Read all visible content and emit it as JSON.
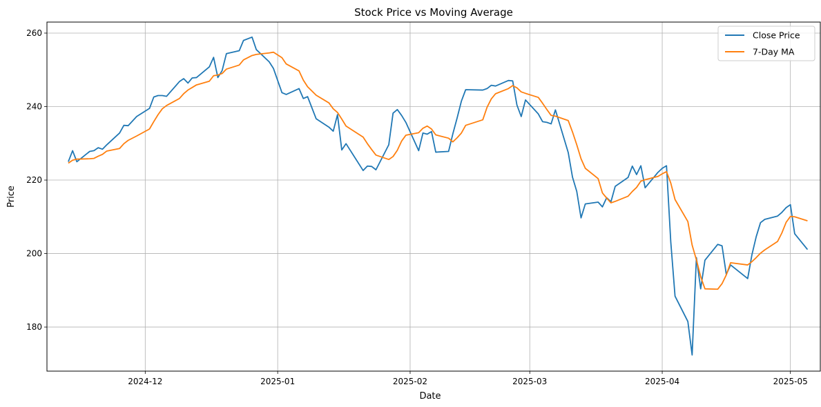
{
  "chart_data": {
    "type": "line",
    "title": "Stock Price vs Moving Average",
    "xlabel": "Date",
    "ylabel": "Price",
    "xlim": [
      "2024-11-08",
      "2025-05-08"
    ],
    "ylim": [
      168,
      263
    ],
    "x_ticks": [
      "2024-12",
      "2025-01",
      "2025-02",
      "2025-03",
      "2025-04",
      "2025-05"
    ],
    "y_ticks": [
      180,
      200,
      220,
      240,
      260
    ],
    "grid": true,
    "legend_position": "top-right",
    "series": [
      {
        "name": "Close Price",
        "color": "#1f77b4",
        "points": [
          [
            "2024-11-13",
            225.0
          ],
          [
            "2024-11-14",
            228.0
          ],
          [
            "2024-11-15",
            225.0
          ],
          [
            "2024-11-18",
            227.8
          ],
          [
            "2024-11-19",
            228.0
          ],
          [
            "2024-11-20",
            228.8
          ],
          [
            "2024-11-21",
            228.4
          ],
          [
            "2024-11-22",
            229.6
          ],
          [
            "2024-11-25",
            232.8
          ],
          [
            "2024-11-26",
            234.9
          ],
          [
            "2024-11-27",
            234.8
          ],
          [
            "2024-11-29",
            237.3
          ],
          [
            "2024-12-02",
            239.5
          ],
          [
            "2024-12-03",
            242.6
          ],
          [
            "2024-12-04",
            243.0
          ],
          [
            "2024-12-05",
            243.0
          ],
          [
            "2024-12-06",
            242.8
          ],
          [
            "2024-12-09",
            246.8
          ],
          [
            "2024-12-10",
            247.6
          ],
          [
            "2024-12-11",
            246.4
          ],
          [
            "2024-12-12",
            247.8
          ],
          [
            "2024-12-13",
            247.9
          ],
          [
            "2024-12-16",
            250.8
          ],
          [
            "2024-12-17",
            253.4
          ],
          [
            "2024-12-18",
            247.9
          ],
          [
            "2024-12-19",
            249.8
          ],
          [
            "2024-12-20",
            254.4
          ],
          [
            "2024-12-23",
            255.2
          ],
          [
            "2024-12-24",
            258.0
          ],
          [
            "2024-12-26",
            258.9
          ],
          [
            "2024-12-27",
            255.5
          ],
          [
            "2024-12-30",
            252.2
          ],
          [
            "2024-12-31",
            250.4
          ],
          [
            "2025-01-02",
            243.8
          ],
          [
            "2025-01-03",
            243.3
          ],
          [
            "2025-01-06",
            244.9
          ],
          [
            "2025-01-07",
            242.2
          ],
          [
            "2025-01-08",
            242.7
          ],
          [
            "2025-01-10",
            236.7
          ],
          [
            "2025-01-13",
            234.4
          ],
          [
            "2025-01-14",
            233.3
          ],
          [
            "2025-01-15",
            237.8
          ],
          [
            "2025-01-16",
            228.2
          ],
          [
            "2025-01-17",
            229.9
          ],
          [
            "2025-01-21",
            222.6
          ],
          [
            "2025-01-22",
            223.8
          ],
          [
            "2025-01-23",
            223.7
          ],
          [
            "2025-01-24",
            222.8
          ],
          [
            "2025-01-27",
            229.6
          ],
          [
            "2025-01-28",
            238.2
          ],
          [
            "2025-01-29",
            239.2
          ],
          [
            "2025-01-30",
            237.6
          ],
          [
            "2025-01-31",
            235.7
          ],
          [
            "2025-02-03",
            228.0
          ],
          [
            "2025-02-04",
            232.8
          ],
          [
            "2025-02-05",
            232.5
          ],
          [
            "2025-02-06",
            233.2
          ],
          [
            "2025-02-07",
            227.6
          ],
          [
            "2025-02-10",
            227.8
          ],
          [
            "2025-02-11",
            232.6
          ],
          [
            "2025-02-12",
            236.9
          ],
          [
            "2025-02-13",
            241.5
          ],
          [
            "2025-02-14",
            244.6
          ],
          [
            "2025-02-18",
            244.5
          ],
          [
            "2025-02-19",
            244.9
          ],
          [
            "2025-02-20",
            245.8
          ],
          [
            "2025-02-21",
            245.6
          ],
          [
            "2025-02-24",
            247.1
          ],
          [
            "2025-02-25",
            247.0
          ],
          [
            "2025-02-26",
            240.4
          ],
          [
            "2025-02-27",
            237.3
          ],
          [
            "2025-02-28",
            241.8
          ],
          [
            "2025-03-03",
            238.0
          ],
          [
            "2025-03-04",
            235.9
          ],
          [
            "2025-03-05",
            235.7
          ],
          [
            "2025-03-06",
            235.3
          ],
          [
            "2025-03-07",
            239.1
          ],
          [
            "2025-03-10",
            227.5
          ],
          [
            "2025-03-11",
            220.8
          ],
          [
            "2025-03-12",
            216.9
          ],
          [
            "2025-03-13",
            209.7
          ],
          [
            "2025-03-14",
            213.5
          ],
          [
            "2025-03-17",
            214.0
          ],
          [
            "2025-03-18",
            212.7
          ],
          [
            "2025-03-19",
            215.2
          ],
          [
            "2025-03-20",
            214.1
          ],
          [
            "2025-03-21",
            218.3
          ],
          [
            "2025-03-24",
            220.7
          ],
          [
            "2025-03-25",
            223.8
          ],
          [
            "2025-03-26",
            221.5
          ],
          [
            "2025-03-27",
            223.9
          ],
          [
            "2025-03-28",
            217.9
          ],
          [
            "2025-03-31",
            222.1
          ],
          [
            "2025-04-01",
            223.2
          ],
          [
            "2025-04-02",
            223.9
          ],
          [
            "2025-04-03",
            203.2
          ],
          [
            "2025-04-04",
            188.4
          ],
          [
            "2025-04-07",
            181.5
          ],
          [
            "2025-04-08",
            172.4
          ],
          [
            "2025-04-09",
            198.9
          ],
          [
            "2025-04-10",
            190.4
          ],
          [
            "2025-04-11",
            198.2
          ],
          [
            "2025-04-14",
            202.5
          ],
          [
            "2025-04-15",
            202.1
          ],
          [
            "2025-04-16",
            194.3
          ],
          [
            "2025-04-17",
            196.9
          ],
          [
            "2025-04-21",
            193.2
          ],
          [
            "2025-04-22",
            199.7
          ],
          [
            "2025-04-23",
            204.6
          ],
          [
            "2025-04-24",
            208.4
          ],
          [
            "2025-04-25",
            209.3
          ],
          [
            "2025-04-28",
            210.2
          ],
          [
            "2025-04-29",
            211.2
          ],
          [
            "2025-04-30",
            212.5
          ],
          [
            "2025-05-01",
            213.3
          ],
          [
            "2025-05-02",
            205.4
          ],
          [
            "2025-05-05",
            201.1
          ]
        ]
      },
      {
        "name": "7-Day MA",
        "color": "#ff7f0e",
        "points": [
          [
            "2024-11-13",
            224.6
          ],
          [
            "2024-11-14",
            225.4
          ],
          [
            "2024-11-15",
            225.7
          ],
          [
            "2024-11-18",
            225.8
          ],
          [
            "2024-11-19",
            225.9
          ],
          [
            "2024-11-20",
            226.5
          ],
          [
            "2024-11-21",
            227.0
          ],
          [
            "2024-11-22",
            227.9
          ],
          [
            "2024-11-25",
            228.6
          ],
          [
            "2024-11-26",
            229.9
          ],
          [
            "2024-11-27",
            230.8
          ],
          [
            "2024-11-29",
            232.0
          ],
          [
            "2024-12-02",
            233.9
          ],
          [
            "2024-12-03",
            235.9
          ],
          [
            "2024-12-04",
            237.8
          ],
          [
            "2024-12-05",
            239.4
          ],
          [
            "2024-12-06",
            240.3
          ],
          [
            "2024-12-09",
            242.2
          ],
          [
            "2024-12-10",
            243.5
          ],
          [
            "2024-12-11",
            244.5
          ],
          [
            "2024-12-12",
            245.2
          ],
          [
            "2024-12-13",
            245.9
          ],
          [
            "2024-12-16",
            246.9
          ],
          [
            "2024-12-17",
            248.4
          ],
          [
            "2024-12-18",
            248.6
          ],
          [
            "2024-12-19",
            249.0
          ],
          [
            "2024-12-20",
            250.2
          ],
          [
            "2024-12-23",
            251.3
          ],
          [
            "2024-12-24",
            252.7
          ],
          [
            "2024-12-26",
            253.9
          ],
          [
            "2024-12-27",
            254.2
          ],
          [
            "2024-12-30",
            254.6
          ],
          [
            "2024-12-31",
            254.8
          ],
          [
            "2025-01-02",
            253.3
          ],
          [
            "2025-01-03",
            251.6
          ],
          [
            "2025-01-06",
            249.7
          ],
          [
            "2025-01-07",
            247.2
          ],
          [
            "2025-01-08",
            245.4
          ],
          [
            "2025-01-10",
            243.1
          ],
          [
            "2025-01-13",
            241.0
          ],
          [
            "2025-01-14",
            239.4
          ],
          [
            "2025-01-15",
            238.4
          ],
          [
            "2025-01-16",
            236.6
          ],
          [
            "2025-01-17",
            234.7
          ],
          [
            "2025-01-21",
            231.7
          ],
          [
            "2025-01-22",
            229.9
          ],
          [
            "2025-01-23",
            228.3
          ],
          [
            "2025-01-24",
            226.8
          ],
          [
            "2025-01-27",
            225.6
          ],
          [
            "2025-01-28",
            226.4
          ],
          [
            "2025-01-29",
            228.1
          ],
          [
            "2025-01-30",
            230.6
          ],
          [
            "2025-01-31",
            232.2
          ],
          [
            "2025-02-03",
            232.9
          ],
          [
            "2025-02-04",
            234.1
          ],
          [
            "2025-02-05",
            234.7
          ],
          [
            "2025-02-06",
            233.9
          ],
          [
            "2025-02-07",
            232.3
          ],
          [
            "2025-02-10",
            231.4
          ],
          [
            "2025-02-11",
            230.4
          ],
          [
            "2025-02-12",
            231.5
          ],
          [
            "2025-02-13",
            232.8
          ],
          [
            "2025-02-14",
            234.9
          ],
          [
            "2025-02-18",
            236.4
          ],
          [
            "2025-02-19",
            239.8
          ],
          [
            "2025-02-20",
            242.1
          ],
          [
            "2025-02-21",
            243.5
          ],
          [
            "2025-02-24",
            244.9
          ],
          [
            "2025-02-25",
            245.7
          ],
          [
            "2025-02-26",
            245.1
          ],
          [
            "2025-02-27",
            244.0
          ],
          [
            "2025-02-28",
            243.6
          ],
          [
            "2025-03-03",
            242.5
          ],
          [
            "2025-03-04",
            240.9
          ],
          [
            "2025-03-05",
            239.2
          ],
          [
            "2025-03-06",
            237.6
          ],
          [
            "2025-03-07",
            237.4
          ],
          [
            "2025-03-10",
            236.2
          ],
          [
            "2025-03-11",
            233.1
          ],
          [
            "2025-03-12",
            229.6
          ],
          [
            "2025-03-13",
            225.8
          ],
          [
            "2025-03-14",
            223.2
          ],
          [
            "2025-03-17",
            220.4
          ],
          [
            "2025-03-18",
            216.5
          ],
          [
            "2025-03-19",
            215.1
          ],
          [
            "2025-03-20",
            213.8
          ],
          [
            "2025-03-21",
            214.2
          ],
          [
            "2025-03-24",
            215.6
          ],
          [
            "2025-03-25",
            216.9
          ],
          [
            "2025-03-26",
            218.0
          ],
          [
            "2025-03-27",
            219.7
          ],
          [
            "2025-03-28",
            220.1
          ],
          [
            "2025-03-31",
            221.0
          ],
          [
            "2025-04-01",
            221.7
          ],
          [
            "2025-04-02",
            222.3
          ],
          [
            "2025-04-03",
            219.2
          ],
          [
            "2025-04-04",
            214.7
          ],
          [
            "2025-04-07",
            208.7
          ],
          [
            "2025-04-08",
            202.3
          ],
          [
            "2025-04-09",
            198.3
          ],
          [
            "2025-04-10",
            193.7
          ],
          [
            "2025-04-11",
            190.4
          ],
          [
            "2025-04-14",
            190.3
          ],
          [
            "2025-04-15",
            191.8
          ],
          [
            "2025-04-16",
            194.2
          ],
          [
            "2025-04-17",
            197.5
          ],
          [
            "2025-04-21",
            196.9
          ],
          [
            "2025-04-22",
            197.8
          ],
          [
            "2025-04-23",
            198.9
          ],
          [
            "2025-04-24",
            200.1
          ],
          [
            "2025-04-25",
            201.0
          ],
          [
            "2025-04-28",
            203.3
          ],
          [
            "2025-04-29",
            205.6
          ],
          [
            "2025-04-30",
            208.5
          ],
          [
            "2025-05-01",
            210.1
          ],
          [
            "2025-05-02",
            210.0
          ],
          [
            "2025-05-05",
            208.9
          ]
        ]
      }
    ]
  }
}
